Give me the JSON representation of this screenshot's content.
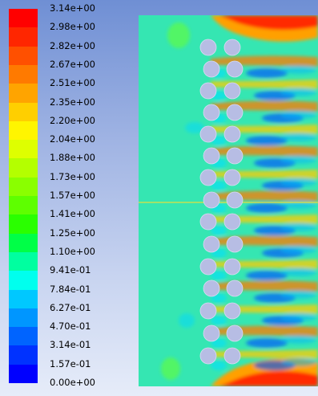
{
  "colormap": {
    "title": "",
    "labels": [
      "3.14e+00",
      "2.98e+00",
      "2.82e+00",
      "2.67e+00",
      "2.51e+00",
      "2.35e+00",
      "2.20e+00",
      "2.04e+00",
      "1.88e+00",
      "1.73e+00",
      "1.57e+00",
      "1.41e+00",
      "1.25e+00",
      "1.10e+00",
      "9.41e-01",
      "7.84e-01",
      "6.27e-01",
      "4.70e-01",
      "3.14e-01",
      "1.57e-01",
      "0.00e+00"
    ],
    "colors": [
      "#ff0000",
      "#ff2600",
      "#ff5000",
      "#ff7a00",
      "#ffa400",
      "#ffcf00",
      "#fff500",
      "#deff00",
      "#b4ff00",
      "#8aff00",
      "#5eff00",
      "#2aff00",
      "#00ff47",
      "#00ffa0",
      "#00ffee",
      "#00c8ff",
      "#0096ff",
      "#0064ff",
      "#0032ff",
      "#0000ff"
    ]
  },
  "contour_plot": {
    "description_colors": {
      "background": "#35e6b2",
      "cylinder_fill": "#b7bde4",
      "centerline": "#e0e040"
    }
  }
}
